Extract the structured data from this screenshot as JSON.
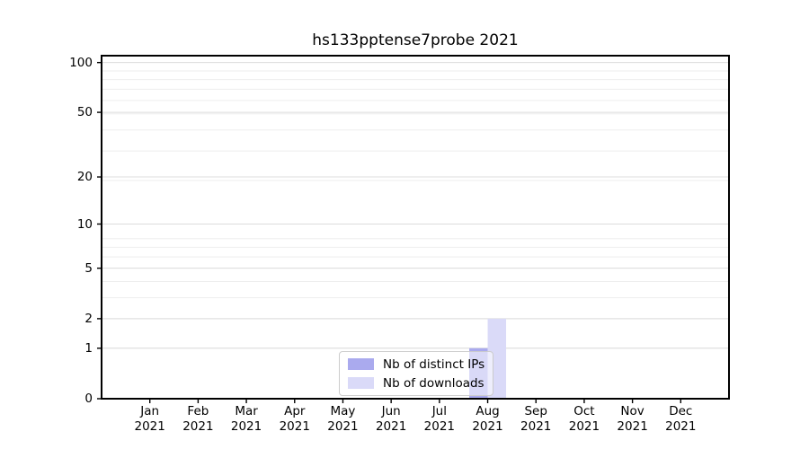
{
  "figure": {
    "background": "#ffffff"
  },
  "chart_data": {
    "type": "bar",
    "title": "hs133pptense7probe 2021",
    "categories": [
      "Jan 2021",
      "Feb 2021",
      "Mar 2021",
      "Apr 2021",
      "May 2021",
      "Jun 2021",
      "Jul 2021",
      "Aug 2021",
      "Sep 2021",
      "Oct 2021",
      "Nov 2021",
      "Dec 2021"
    ],
    "series": [
      {
        "name": "Nb of distinct IPs",
        "color": "#aaaaee",
        "values": [
          0,
          0,
          0,
          0,
          0,
          0,
          0,
          1,
          0,
          0,
          0,
          0
        ]
      },
      {
        "name": "Nb of downloads",
        "color": "#dadaf8",
        "values": [
          0,
          0,
          0,
          0,
          0,
          0,
          0,
          2,
          0,
          0,
          0,
          0
        ]
      }
    ],
    "yscale": "log1p",
    "yticks": [
      0,
      1,
      2,
      5,
      10,
      20,
      50,
      100
    ],
    "ylim": [
      0,
      110
    ],
    "xlabel": "",
    "ylabel": "",
    "grid": "horizontal",
    "legend_position": "lower center",
    "colors": {
      "grid_major": "#dcdcdc",
      "grid_minor": "#eeeeee",
      "axis": "#000000",
      "text": "#000000"
    }
  }
}
